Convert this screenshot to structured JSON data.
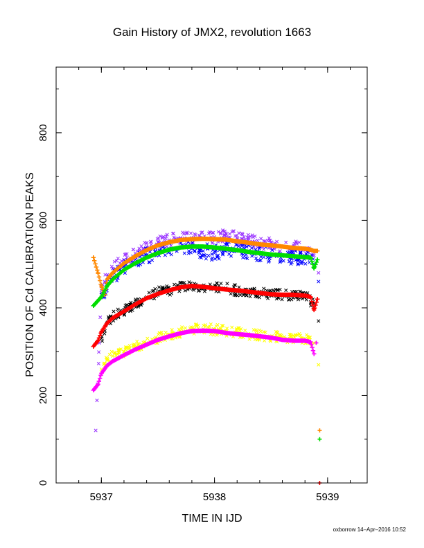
{
  "chart_data": {
    "type": "scatter",
    "title": "Gain History of JMX2, revolution 1663",
    "xlabel": "TIME IN IJD",
    "ylabel": "POSITION OF Cd CALIBRATION PEAKS",
    "xlim": [
      5936.6,
      5939.35
    ],
    "ylim": [
      0,
      950
    ],
    "xticks": [
      5937,
      5938,
      5939
    ],
    "yticks": [
      0,
      200,
      400,
      600,
      800
    ],
    "xtick_labels": [
      "5937",
      "5938",
      "5939"
    ],
    "ytick_labels": [
      "0",
      "200",
      "400",
      "600",
      "800"
    ],
    "grid": false,
    "legend": "none",
    "series": [
      {
        "marker": "x",
        "color": "#9933ff",
        "x": [
          5936.95,
          5937.0,
          5937.03,
          5937.1,
          5937.2,
          5937.3,
          5937.4,
          5937.5,
          5937.6,
          5937.7,
          5937.8,
          5937.9,
          5938.0,
          5938.1,
          5938.2,
          5938.3,
          5938.4,
          5938.5,
          5938.6,
          5938.7,
          5938.8,
          5938.88,
          5938.92
        ],
        "y": [
          120,
          440,
          460,
          490,
          510,
          525,
          540,
          550,
          555,
          560,
          560,
          560,
          562,
          565,
          560,
          555,
          548,
          545,
          540,
          540,
          535,
          520,
          480
        ],
        "jitter": 14
      },
      {
        "marker": "x",
        "color": "#0000ff",
        "x": [
          5937.0,
          5937.1,
          5937.2,
          5937.3,
          5937.4,
          5937.5,
          5937.6,
          5937.7,
          5937.8,
          5937.9,
          5938.0,
          5938.1,
          5938.2,
          5938.3,
          5938.4,
          5938.5,
          5938.6,
          5938.7,
          5938.8,
          5938.88,
          5938.92
        ],
        "y": [
          430,
          470,
          495,
          510,
          520,
          528,
          535,
          538,
          535,
          530,
          525,
          535,
          532,
          530,
          525,
          520,
          518,
          518,
          515,
          500,
          460
        ],
        "jitter": 18
      },
      {
        "marker": "x",
        "color": "#000000",
        "x": [
          5937.0,
          5937.05,
          5937.1,
          5937.2,
          5937.3,
          5937.4,
          5937.5,
          5937.6,
          5937.7,
          5937.8,
          5937.9,
          5938.0,
          5938.1,
          5938.2,
          5938.3,
          5938.4,
          5938.5,
          5938.6,
          5938.7,
          5938.8,
          5938.88,
          5938.92
        ],
        "y": [
          330,
          365,
          380,
          395,
          410,
          425,
          435,
          440,
          448,
          450,
          450,
          448,
          445,
          440,
          438,
          435,
          432,
          430,
          430,
          428,
          410,
          370
        ],
        "jitter": 12
      },
      {
        "marker": "x",
        "color": "#ffff00",
        "x": [
          5937.0,
          5937.05,
          5937.1,
          5937.2,
          5937.3,
          5937.4,
          5937.5,
          5937.6,
          5937.7,
          5937.8,
          5937.9,
          5938.0,
          5938.1,
          5938.2,
          5938.3,
          5938.4,
          5938.5,
          5938.6,
          5938.7,
          5938.8,
          5938.88,
          5938.92
        ],
        "y": [
          260,
          280,
          290,
          300,
          310,
          320,
          330,
          340,
          345,
          350,
          352,
          350,
          348,
          345,
          340,
          338,
          335,
          332,
          330,
          330,
          320,
          270
        ],
        "jitter": 12
      },
      {
        "marker": "+",
        "color": "#ff8800",
        "x": [
          5936.93,
          5936.97,
          5937.0,
          5937.03,
          5937.05,
          5937.1,
          5937.2,
          5937.3,
          5937.4,
          5937.5,
          5937.6,
          5937.7,
          5937.8,
          5937.9,
          5938.0,
          5938.1,
          5938.2,
          5938.3,
          5938.4,
          5938.5,
          5938.6,
          5938.7,
          5938.8,
          5938.85,
          5938.88,
          5938.91,
          5938.93
        ],
        "y": [
          515,
          480,
          450,
          430,
          465,
          480,
          502,
          518,
          532,
          543,
          550,
          555,
          557,
          558,
          557,
          556,
          552,
          549,
          545,
          543,
          540,
          537,
          535,
          533,
          530,
          530,
          120
        ]
      },
      {
        "marker": "+",
        "color": "#00dd00",
        "x": [
          5936.93,
          5937.0,
          5937.05,
          5937.1,
          5937.2,
          5937.3,
          5937.4,
          5937.5,
          5937.6,
          5937.7,
          5937.8,
          5937.9,
          5938.0,
          5938.1,
          5938.2,
          5938.3,
          5938.4,
          5938.5,
          5938.6,
          5938.7,
          5938.8,
          5938.85,
          5938.88,
          5938.91,
          5938.93
        ],
        "y": [
          405,
          425,
          450,
          465,
          487,
          502,
          515,
          525,
          533,
          538,
          540,
          540,
          538,
          535,
          532,
          528,
          525,
          522,
          520,
          518,
          516,
          515,
          490,
          510,
          100
        ]
      },
      {
        "marker": "+",
        "color": "#ff0000",
        "x": [
          5936.93,
          5936.97,
          5937.0,
          5937.05,
          5937.1,
          5937.2,
          5937.3,
          5937.4,
          5937.5,
          5937.6,
          5937.7,
          5937.8,
          5937.9,
          5938.0,
          5938.1,
          5938.2,
          5938.3,
          5938.4,
          5938.5,
          5938.6,
          5938.7,
          5938.8,
          5938.85,
          5938.88,
          5938.91,
          5938.93
        ],
        "y": [
          312,
          325,
          345,
          365,
          377,
          392,
          408,
          422,
          432,
          440,
          447,
          450,
          448,
          445,
          442,
          440,
          437,
          434,
          431,
          430,
          430,
          428,
          425,
          395,
          420,
          0
        ]
      },
      {
        "marker": "+",
        "color": "#ff00ff",
        "x": [
          5936.93,
          5936.97,
          5937.0,
          5937.05,
          5937.1,
          5937.2,
          5937.3,
          5937.4,
          5937.5,
          5937.6,
          5937.7,
          5937.8,
          5937.9,
          5938.0,
          5938.1,
          5938.2,
          5938.3,
          5938.4,
          5938.5,
          5938.6,
          5938.7,
          5938.8,
          5938.85,
          5938.88,
          5938.9
        ],
        "y": [
          212,
          225,
          250,
          268,
          278,
          292,
          305,
          316,
          327,
          335,
          342,
          347,
          348,
          347,
          343,
          340,
          338,
          335,
          332,
          327,
          325,
          325,
          322,
          295,
          320
        ]
      }
    ]
  },
  "footer": {
    "text": "oxborrow 14–Apr–2016 10:52"
  }
}
